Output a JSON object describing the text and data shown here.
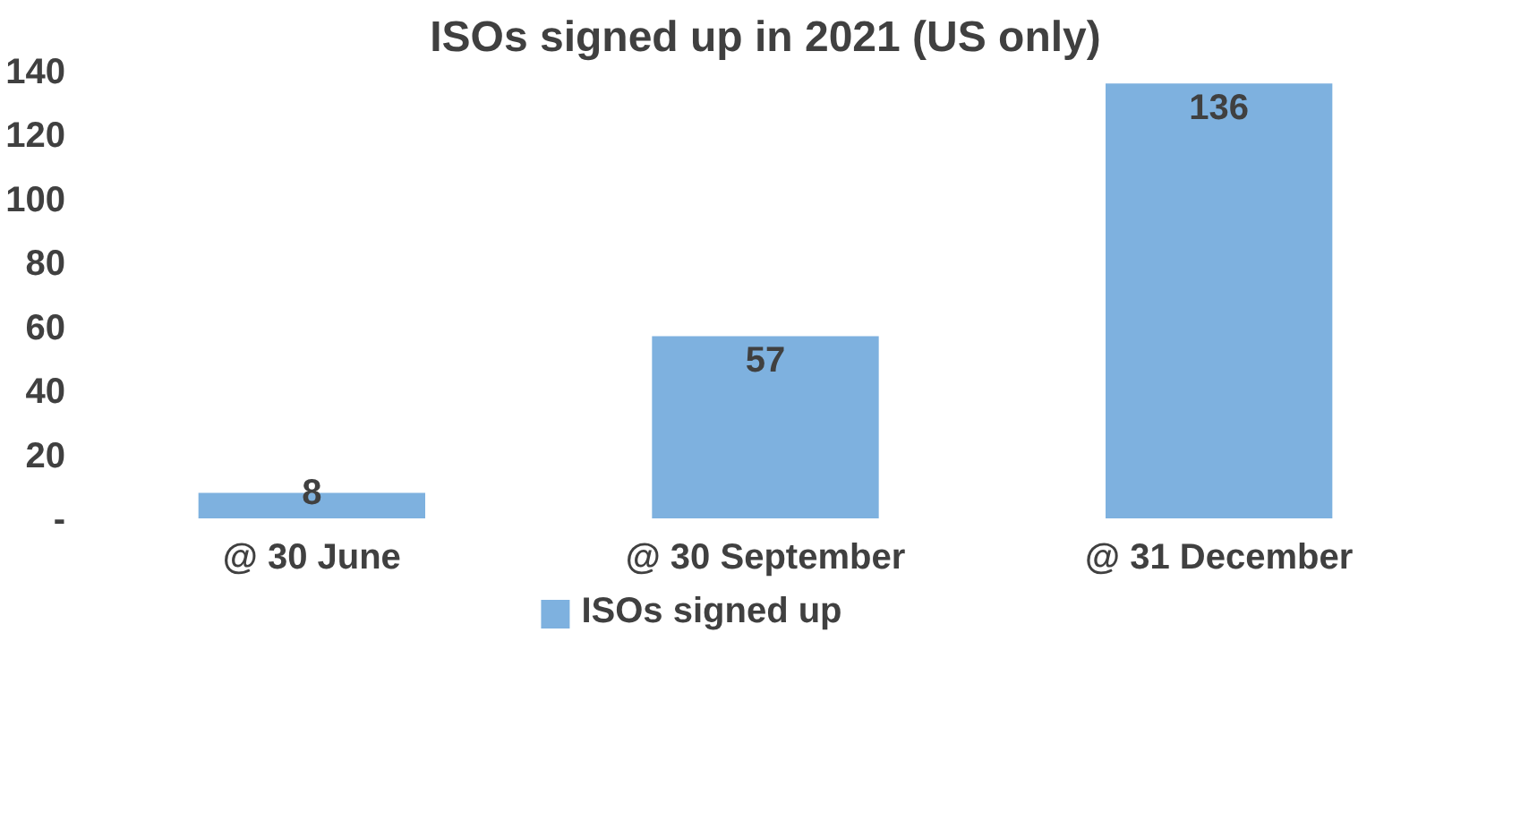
{
  "chart_data": {
    "type": "bar",
    "title": "ISOs signed up in 2021 (US only)",
    "categories": [
      "@ 30 June",
      "@ 30 September",
      "@ 31 December"
    ],
    "series": [
      {
        "name": "ISOs signed up",
        "color": "#7eb1df",
        "values": [
          8,
          57,
          136
        ]
      }
    ],
    "ylim": [
      0,
      140
    ],
    "yticks": [
      {
        "value": 0,
        "label": "-"
      },
      20,
      40,
      60,
      80,
      100,
      120,
      140
    ],
    "grid": false,
    "legend": "bottom",
    "data_labels": true
  }
}
